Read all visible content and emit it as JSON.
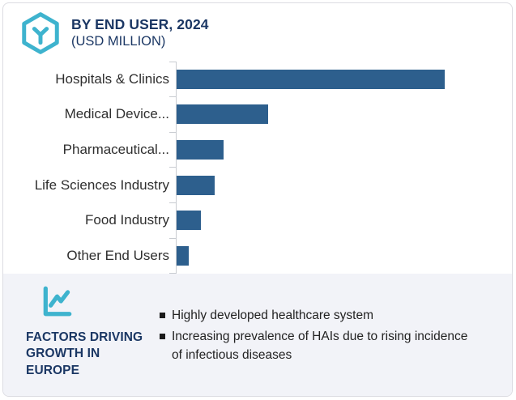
{
  "header": {
    "title": "BY END USER, 2024",
    "subtitle": "(USD MILLION)",
    "icon": "hexagon-cube-icon",
    "navy_color": "#1b3764",
    "teal_color": "#3eb3ce"
  },
  "chart_data": {
    "type": "bar",
    "orientation": "horizontal",
    "title": "BY END USER, 2024",
    "units": "USD MILLION",
    "categories": [
      "Hospitals & Clinics",
      "Medical Device...",
      "Pharmaceutical...",
      "Life Sciences Industry",
      "Food Industry",
      "Other End Users"
    ],
    "values": [
      100,
      34,
      17.5,
      14.3,
      9.2,
      4.6
    ],
    "value_note": "No numeric axis or data labels shown; values are estimated relative bar lengths as % of the largest bar",
    "xlim": [
      0,
      125
    ],
    "grid": false,
    "legend": false,
    "bar_color": "#2d5f8d",
    "axis_color": "#c9ccd1",
    "label_color": "#2f2f2f"
  },
  "factors": {
    "title": "FACTORS DRIVING GROWTH IN EUROPE",
    "icon": "trend-chart-icon",
    "panel_bg": "#f2f3f8",
    "items": [
      "Highly developed healthcare system",
      "Increasing prevalence of HAIs due to rising incidence of infectious diseases"
    ]
  }
}
